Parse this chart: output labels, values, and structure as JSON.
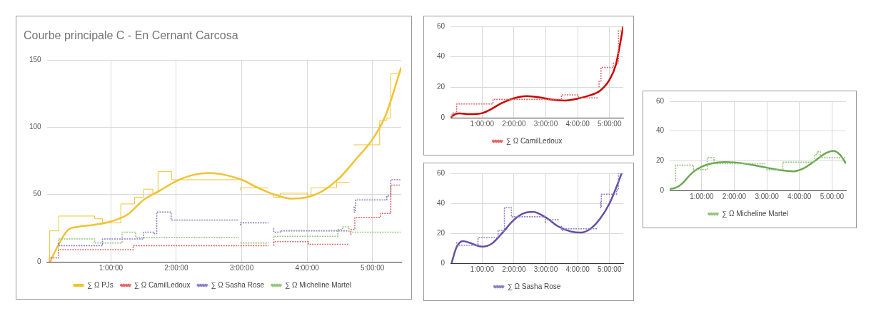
{
  "chart_data": [
    {
      "type": "line",
      "title": "Courbe principale C - En Cernant Carcosa",
      "xlim": [
        0.02,
        5.44
      ],
      "ylim": [
        0,
        150
      ],
      "yticks": [
        0,
        50,
        100,
        150
      ],
      "xticks": [
        {
          "value": 1,
          "label": "1:00:00"
        },
        {
          "value": 2,
          "label": "2:00:00"
        },
        {
          "value": 3,
          "label": "3:00:00"
        },
        {
          "value": 4,
          "label": "4:00:00"
        },
        {
          "value": 5,
          "label": "5:00:00"
        }
      ],
      "grid": true,
      "legend": "bottom",
      "series": [
        {
          "name": "∑ Ω PJs",
          "type": "step",
          "color": "#f1c232",
          "line_style": "solid",
          "x": [
            0.06,
            0.2,
            0.75,
            0.87,
            1.15,
            1.36,
            1.5,
            1.64,
            1.72,
            1.93,
            2.03,
            2.96,
            2.97,
            2.98,
            3.13,
            3.41,
            3.45,
            3.49,
            3.59,
            4.0,
            4.06,
            4.45,
            4.53,
            4.65,
            4.68,
            4.71,
            5.11,
            5.14,
            5.22,
            5.28,
            5.32,
            5.43
          ],
          "values": [
            0,
            23,
            34,
            32,
            29,
            43,
            48,
            54,
            51,
            67,
            61,
            61,
            null,
            53,
            55,
            55,
            null,
            51,
            48,
            51,
            49,
            55,
            59,
            59,
            null,
            87,
            87,
            105,
            105,
            107,
            140,
            140
          ]
        },
        {
          "name": "∑ Ω CamilLedoux",
          "type": "step",
          "color": "#e06666",
          "line_style": "dotted",
          "x": [
            0.06,
            0.2,
            1.34,
            1.72,
            2.96,
            2.97,
            2.98,
            3.41,
            3.45,
            3.49,
            4.02,
            4.06,
            4.64,
            4.66,
            4.67,
            4.73,
            5.12,
            5.28,
            5.33,
            5.43
          ],
          "values": [
            0,
            3,
            9,
            12,
            12,
            null,
            12,
            12,
            null,
            12,
            15,
            13,
            13,
            null,
            20,
            24,
            33,
            36,
            57,
            57
          ]
        },
        {
          "name": "∑ Ω Sasha Rose",
          "type": "step",
          "color": "#8e7cc3",
          "line_style": "dotted",
          "x": [
            0.2,
            0.87,
            1.5,
            1.66,
            1.7,
            1.92,
            2.0,
            2.96,
            2.97,
            2.98,
            3.13,
            3.41,
            3.45,
            3.49,
            3.59,
            4.63,
            4.68,
            4.72,
            4.74,
            5.12,
            5.22,
            5.28,
            5.3,
            5.43
          ],
          "values": [
            14,
            12,
            17,
            22,
            21,
            37,
            31,
            31,
            null,
            27,
            29,
            29,
            null,
            25,
            22,
            23,
            null,
            41,
            37,
            46,
            46,
            49,
            61,
            61
          ]
        },
        {
          "name": "∑ Ω Micheline Martel",
          "type": "step",
          "color": "#93c47d",
          "line_style": "dotted",
          "x": [
            0.2,
            0.75,
            1.17,
            1.38,
            1.74,
            2.96,
            2.97,
            2.98,
            3.41,
            3.45,
            3.49,
            4.47,
            4.54,
            4.64,
            5.23,
            5.43
          ],
          "values": [
            6,
            17,
            14,
            22,
            18,
            18,
            null,
            14,
            14,
            null,
            14,
            19,
            24,
            26,
            22,
            22
          ]
        },
        {
          "type": "line",
          "color": "#f1c232",
          "line_style": "solid",
          "x": [
            0.07,
            0.2,
            0.35,
            0.5,
            0.75,
            1.0,
            1.25,
            1.5,
            1.75,
            2.0,
            2.25,
            2.5,
            2.75,
            3.0,
            3.25,
            3.5,
            3.75,
            4.0,
            4.25,
            4.5,
            4.75,
            5.0,
            5.2,
            5.44
          ],
          "values": [
            0,
            13,
            24,
            26,
            27.6,
            30,
            35,
            46,
            53,
            60,
            64.5,
            66,
            64.5,
            61,
            55,
            50,
            47,
            48,
            53,
            62.6,
            76.4,
            91,
            108.7,
            144.6
          ]
        }
      ]
    },
    {
      "type": "line",
      "xlim": [
        0.01,
        5.43
      ],
      "ylim": [
        0,
        60
      ],
      "yticks": [
        0,
        20,
        40,
        60
      ],
      "xticks": [
        {
          "value": 1,
          "label": "1:00:00"
        },
        {
          "value": 2,
          "label": "2:00:00"
        },
        {
          "value": 3,
          "label": "3:00:00"
        },
        {
          "value": 4,
          "label": "4:00:00"
        },
        {
          "value": 5,
          "label": "5:00:00"
        }
      ],
      "grid": true,
      "legend": "bottom",
      "series": [
        {
          "name": "∑ Ω CamilLedoux",
          "type": "step",
          "color": "#e06666",
          "line_style": "dotted",
          "x": [
            0.06,
            0.2,
            1.34,
            1.72,
            2.96,
            2.97,
            2.98,
            3.41,
            3.45,
            3.49,
            4.02,
            4.06,
            4.64,
            4.66,
            4.67,
            4.73,
            5.12,
            5.28,
            5.33,
            5.43
          ],
          "values": [
            0,
            3,
            9,
            12,
            12,
            null,
            12,
            12,
            null,
            12,
            15,
            13,
            13,
            null,
            20,
            24,
            33,
            36,
            57,
            57
          ]
        },
        {
          "type": "line",
          "color": "#cc0000",
          "line_style": "solid",
          "x": [
            0.02,
            0.15,
            0.3,
            0.6,
            1.0,
            1.3,
            1.6,
            2.0,
            2.4,
            2.8,
            3.2,
            3.6,
            4.0,
            4.4,
            4.7,
            5.0,
            5.2,
            5.43
          ],
          "values": [
            0,
            2.3,
            2.8,
            2.3,
            3,
            5.8,
            9.4,
            12.8,
            14.2,
            13.4,
            11.8,
            11.3,
            12.5,
            14.8,
            17.7,
            25,
            35,
            60
          ]
        }
      ]
    },
    {
      "type": "line",
      "xlim": [
        0.01,
        5.43
      ],
      "ylim": [
        0,
        60
      ],
      "yticks": [
        0,
        20,
        40,
        60
      ],
      "xticks": [
        {
          "value": 1,
          "label": "1:00:00"
        },
        {
          "value": 2,
          "label": "2:00:00"
        },
        {
          "value": 3,
          "label": "3:00:00"
        },
        {
          "value": 4,
          "label": "4:00:00"
        },
        {
          "value": 5,
          "label": "5:00:00"
        }
      ],
      "grid": true,
      "legend": "bottom",
      "series": [
        {
          "name": "∑ Ω Sasha Rose",
          "type": "step",
          "color": "#8e7cc3",
          "line_style": "dotted",
          "x": [
            0.2,
            0.87,
            1.5,
            1.66,
            1.7,
            1.92,
            2.0,
            2.96,
            2.97,
            2.98,
            3.13,
            3.41,
            3.45,
            3.49,
            3.59,
            4.63,
            4.68,
            4.72,
            4.74,
            5.12,
            5.22,
            5.28,
            5.3,
            5.43
          ],
          "values": [
            14,
            12,
            17,
            22,
            21,
            37,
            31,
            31,
            null,
            27,
            29,
            29,
            null,
            25,
            22,
            23,
            null,
            41,
            37,
            46,
            46,
            49,
            60,
            60
          ]
        },
        {
          "type": "line",
          "color": "#674ea7",
          "line_style": "solid",
          "x": [
            0.04,
            0.2,
            0.4,
            0.6,
            1.0,
            1.3,
            1.6,
            2.0,
            2.3,
            2.6,
            3.0,
            3.4,
            3.8,
            4.1,
            4.4,
            4.7,
            5.0,
            5.2,
            5.38
          ],
          "values": [
            0,
            10.8,
            14.8,
            13.7,
            11.1,
            13,
            19.4,
            29,
            33.3,
            34.3,
            30.5,
            24.4,
            21.1,
            20.5,
            23,
            29.6,
            40,
            50,
            60
          ]
        }
      ]
    },
    {
      "type": "line",
      "xlim": [
        0.02,
        5.43
      ],
      "ylim": [
        0,
        60
      ],
      "yticks": [
        0,
        20,
        40,
        60
      ],
      "xticks": [
        {
          "value": 1,
          "label": "1:00:00"
        },
        {
          "value": 2,
          "label": "2:00:00"
        },
        {
          "value": 3,
          "label": "3:00:00"
        },
        {
          "value": 4,
          "label": "4:00:00"
        },
        {
          "value": 5,
          "label": "5:00:00"
        }
      ],
      "grid": true,
      "legend": "bottom",
      "series": [
        {
          "name": "∑ Ω Micheline Martel",
          "type": "step",
          "color": "#93c47d",
          "line_style": "dotted",
          "x": [
            0.2,
            0.75,
            1.17,
            1.38,
            1.74,
            2.96,
            2.97,
            2.98,
            3.41,
            3.45,
            3.49,
            4.47,
            4.54,
            4.64,
            5.23,
            5.43
          ],
          "values": [
            6,
            17,
            14,
            22,
            18,
            18,
            null,
            14,
            14,
            null,
            14,
            19,
            24,
            26,
            22,
            22
          ]
        },
        {
          "type": "line",
          "color": "#6aa84f",
          "line_style": "solid",
          "x": [
            0.02,
            0.2,
            0.4,
            0.7,
            1.0,
            1.3,
            1.7,
            2.0,
            2.5,
            3.0,
            3.5,
            3.8,
            4.1,
            4.5,
            4.8,
            5.05,
            5.25,
            5.43
          ],
          "values": [
            1,
            1.7,
            4.6,
            11.7,
            16,
            18.1,
            19.1,
            18.9,
            17.4,
            15.3,
            13.4,
            12.9,
            14.6,
            20.3,
            25,
            26.7,
            23.9,
            18.1
          ]
        }
      ]
    }
  ]
}
